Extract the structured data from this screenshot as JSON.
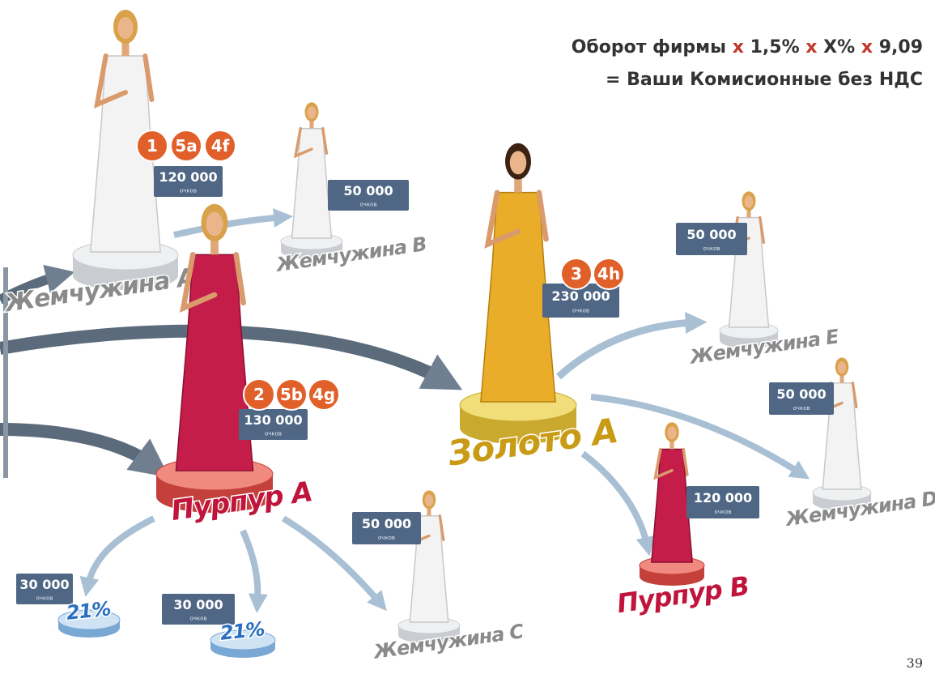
{
  "formula": {
    "parts": [
      "Оборот фирмы",
      "x",
      "1,5%",
      "x",
      "X%",
      "x",
      "9,09"
    ],
    "result": "= Ваши Комисионные без НДС"
  },
  "nodes": [
    {
      "label": "Жемчужина A",
      "points": "120 000",
      "unit": "очков",
      "badges": [
        "1",
        "5a",
        "4f"
      ]
    },
    {
      "label": "Жемчужина B",
      "points": "50 000",
      "unit": "очков"
    },
    {
      "label": "Пурпур A",
      "points": "130 000",
      "unit": "очков",
      "badges": [
        "2",
        "5b",
        "4g"
      ]
    },
    {
      "label": "Золото A",
      "points": "230 000",
      "unit": "очков",
      "badges": [
        "3",
        "4h"
      ]
    },
    {
      "label": "Жемчужина E",
      "points": "50 000",
      "unit": "очков"
    },
    {
      "label": "Жемчужина D",
      "points": "50 000",
      "unit": "очков"
    },
    {
      "label": "Пурпур B",
      "points": "120 000",
      "unit": "очков"
    },
    {
      "label": "Жемчужина C",
      "points": "50 000",
      "unit": "очков"
    },
    {
      "points": "30 000",
      "unit": "очков",
      "percent": "21%"
    },
    {
      "points": "30 000",
      "unit": "очков",
      "percent": "21%"
    }
  ],
  "page_number": "39"
}
